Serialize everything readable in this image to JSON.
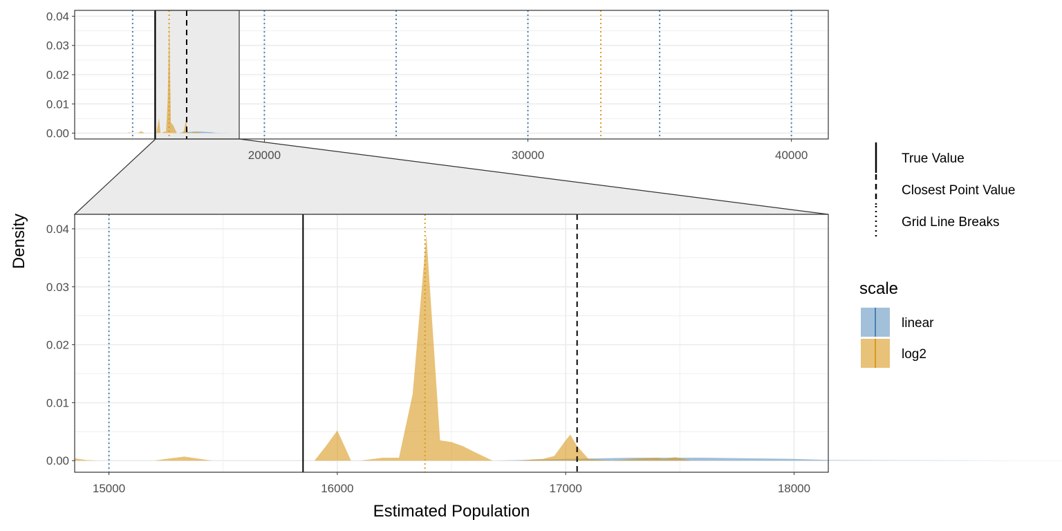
{
  "chart_data": {
    "type": "area",
    "xlabel": "Estimated Population",
    "ylabel": "Density",
    "colors": {
      "linear": "#4682b4",
      "log2": "#d99a1e",
      "reference": "#000000",
      "zoom_fill": "#ebebeb"
    },
    "overview_panel": {
      "xlim": [
        12800,
        41400
      ],
      "ylim": [
        -0.002,
        0.042
      ],
      "x_ticks": [
        20000,
        30000,
        40000
      ],
      "x_tick_labels": [
        "20000",
        "30000",
        "40000"
      ],
      "y_ticks": [
        0,
        0.01,
        0.02,
        0.03,
        0.04
      ],
      "y_tick_labels": [
        "0.00",
        "0.01",
        "0.02",
        "0.03",
        "0.04"
      ],
      "zoom_region": [
        15850,
        18160
      ]
    },
    "zoom_panel": {
      "xlim": [
        14850,
        18150
      ],
      "ylim": [
        -0.002,
        0.0425
      ],
      "x_ticks": [
        15000,
        16000,
        17000,
        18000
      ],
      "x_tick_labels": [
        "15000",
        "16000",
        "17000",
        "18000"
      ],
      "y_ticks": [
        0,
        0.01,
        0.02,
        0.03,
        0.04
      ],
      "y_tick_labels": [
        "0.00",
        "0.01",
        "0.02",
        "0.03",
        "0.04"
      ]
    },
    "series": [
      {
        "name": "linear",
        "x": [
          14850,
          15400,
          16000,
          16700,
          17000,
          17300,
          17600,
          18000,
          18160,
          19000,
          20000
        ],
        "y": [
          0,
          0,
          0,
          0,
          0.0003,
          0.0005,
          0.0005,
          0.0003,
          0.0001,
          2e-05,
          0
        ]
      },
      {
        "name": "log2",
        "x": [
          14850,
          14900,
          14950,
          15200,
          15250,
          15330,
          15400,
          15450,
          15500,
          15900,
          15950,
          16000,
          16020,
          16060,
          16100,
          16200,
          16270,
          16330,
          16390,
          16450,
          16500,
          16550,
          16600,
          16680,
          16800,
          16850,
          16900,
          16950,
          17000,
          17020,
          17050,
          17100,
          17200,
          17300,
          17400,
          17430,
          17480,
          17550,
          17700,
          18150
        ],
        "y": [
          0.0004,
          0.0001,
          0,
          0,
          0.0003,
          0.0007,
          0.0003,
          0,
          0,
          0,
          0.0025,
          0.0052,
          0.0035,
          0,
          0,
          0.0005,
          0.0005,
          0.0115,
          0.039,
          0.0035,
          0.0032,
          0.0025,
          0.0015,
          0,
          0,
          0.0002,
          0.0003,
          0.0008,
          0.0035,
          0.0045,
          0.0025,
          0.0003,
          0,
          0.0003,
          0.0005,
          0.0003,
          0.0006,
          0,
          0,
          0
        ]
      }
    ],
    "reference_lines": {
      "true_value": 15850,
      "closest_point_value": 17050,
      "grid_line_breaks": [
        {
          "scale": "linear",
          "x": 15000
        },
        {
          "scale": "log2",
          "x": 16384
        },
        {
          "scale": "linear",
          "x": 20000
        },
        {
          "scale": "linear",
          "x": 25000
        },
        {
          "scale": "linear",
          "x": 30000
        },
        {
          "scale": "log2",
          "x": 32768
        },
        {
          "scale": "linear",
          "x": 35000
        },
        {
          "scale": "linear",
          "x": 40000
        }
      ]
    },
    "legend_lines": {
      "position": "right",
      "items": [
        {
          "label": "True Value",
          "linetype": "solid"
        },
        {
          "label": "Closest Point Value",
          "linetype": "dashed"
        },
        {
          "label": "Grid Line Breaks",
          "linetype": "dotted"
        }
      ]
    },
    "legend_fill": {
      "title": "scale",
      "items": [
        {
          "label": "linear",
          "color": "#4682b4"
        },
        {
          "label": "log2",
          "color": "#d99a1e"
        }
      ]
    }
  }
}
